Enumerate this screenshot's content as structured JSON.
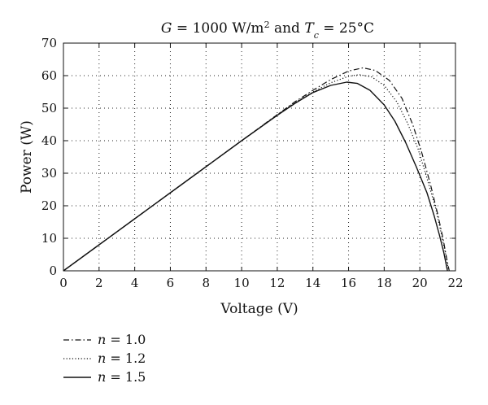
{
  "chart_data": {
    "type": "line",
    "title": {
      "g_symbol": "G",
      "g_value": " = 1000 W/m",
      "g_exp": "2",
      "conj": " and ",
      "t_symbol": "T",
      "t_sub": "c",
      "t_value": " = 25°C"
    },
    "xlabel": "Voltage (V)",
    "ylabel": "Power (W)",
    "xlim": [
      0,
      22
    ],
    "ylim": [
      0,
      70
    ],
    "xticks": [
      0,
      2,
      4,
      6,
      8,
      10,
      12,
      14,
      16,
      18,
      20,
      22
    ],
    "yticks": [
      0,
      10,
      20,
      30,
      40,
      50,
      60,
      70
    ],
    "grid": true,
    "legend_position": "bottom-left, below plot",
    "series": [
      {
        "name": "1.0",
        "legend_symbol": "n",
        "style": "dashdot",
        "points": [
          [
            0,
            0
          ],
          [
            2,
            8
          ],
          [
            4,
            16
          ],
          [
            6,
            24
          ],
          [
            8,
            32
          ],
          [
            10,
            40
          ],
          [
            12,
            48
          ],
          [
            13,
            52
          ],
          [
            14,
            55.5
          ],
          [
            15,
            58.8
          ],
          [
            16,
            61.4
          ],
          [
            16.8,
            62.4
          ],
          [
            17.5,
            61.6
          ],
          [
            18.3,
            58.5
          ],
          [
            19,
            53
          ],
          [
            19.6,
            45
          ],
          [
            20.1,
            36.5
          ],
          [
            20.6,
            26.5
          ],
          [
            21,
            17.5
          ],
          [
            21.3,
            10
          ],
          [
            21.5,
            4
          ],
          [
            21.65,
            0
          ]
        ]
      },
      {
        "name": "1.2",
        "legend_symbol": "n",
        "style": "dotted",
        "points": [
          [
            0,
            0
          ],
          [
            2,
            8
          ],
          [
            4,
            16
          ],
          [
            6,
            24
          ],
          [
            8,
            32
          ],
          [
            10,
            40
          ],
          [
            12,
            48
          ],
          [
            13,
            51.8
          ],
          [
            14,
            55
          ],
          [
            15,
            57.8
          ],
          [
            16,
            59.8
          ],
          [
            16.6,
            60.3
          ],
          [
            17.3,
            59.6
          ],
          [
            18,
            57
          ],
          [
            18.7,
            52
          ],
          [
            19.3,
            45.5
          ],
          [
            19.9,
            37.5
          ],
          [
            20.4,
            28.5
          ],
          [
            20.9,
            19
          ],
          [
            21.2,
            11.5
          ],
          [
            21.45,
            5
          ],
          [
            21.62,
            0
          ]
        ]
      },
      {
        "name": "1.5",
        "legend_symbol": "n",
        "style": "solid",
        "points": [
          [
            0,
            0
          ],
          [
            2,
            8
          ],
          [
            4,
            16
          ],
          [
            6,
            24
          ],
          [
            8,
            32
          ],
          [
            10,
            40
          ],
          [
            12,
            47.8
          ],
          [
            13,
            51.5
          ],
          [
            14,
            54.8
          ],
          [
            15,
            57
          ],
          [
            15.9,
            58
          ],
          [
            16.5,
            57.6
          ],
          [
            17.2,
            55.5
          ],
          [
            18,
            51
          ],
          [
            18.6,
            46
          ],
          [
            19.2,
            39.5
          ],
          [
            19.8,
            32
          ],
          [
            20.4,
            24
          ],
          [
            20.8,
            17
          ],
          [
            21.1,
            11
          ],
          [
            21.35,
            5.5
          ],
          [
            21.55,
            0
          ]
        ]
      }
    ]
  }
}
